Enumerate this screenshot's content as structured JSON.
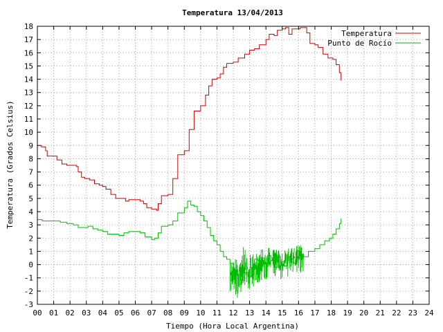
{
  "chart_data": {
    "type": "line",
    "title": "Temperatura 13/04/2013",
    "xlabel": "Tiempo (Hora Local Argentina)",
    "ylabel": "Temperatura (Grados Celsius)",
    "xlim": [
      0,
      24
    ],
    "ylim": [
      -3,
      18
    ],
    "grid": true,
    "legend_position": "top-right",
    "x_ticks": [
      "00",
      "01",
      "02",
      "03",
      "04",
      "05",
      "06",
      "07",
      "08",
      "09",
      "10",
      "11",
      "12",
      "13",
      "14",
      "15",
      "16",
      "17",
      "18",
      "19",
      "20",
      "21",
      "22",
      "23",
      "24"
    ],
    "y_ticks": [
      -3,
      -2,
      -1,
      0,
      1,
      2,
      3,
      4,
      5,
      6,
      7,
      8,
      9,
      10,
      11,
      12,
      13,
      14,
      15,
      16,
      17,
      18
    ],
    "series": [
      {
        "name": "Temperatura",
        "color": "#cc0000",
        "points": [
          [
            0.0,
            9.0
          ],
          [
            0.25,
            8.9
          ],
          [
            0.5,
            8.6
          ],
          [
            0.6,
            8.2
          ],
          [
            1.0,
            8.2
          ],
          [
            1.2,
            7.9
          ],
          [
            1.5,
            7.6
          ],
          [
            1.8,
            7.5
          ],
          [
            2.2,
            7.5
          ],
          [
            2.4,
            7.4
          ],
          [
            2.5,
            7.0
          ],
          [
            2.7,
            6.6
          ],
          [
            2.9,
            6.5
          ],
          [
            3.2,
            6.4
          ],
          [
            3.5,
            6.1
          ],
          [
            3.8,
            6.0
          ],
          [
            4.0,
            5.9
          ],
          [
            4.2,
            5.7
          ],
          [
            4.5,
            5.3
          ],
          [
            4.8,
            5.0
          ],
          [
            5.2,
            5.0
          ],
          [
            5.4,
            4.8
          ],
          [
            5.6,
            4.9
          ],
          [
            6.0,
            4.9
          ],
          [
            6.3,
            4.8
          ],
          [
            6.5,
            4.6
          ],
          [
            6.7,
            4.3
          ],
          [
            7.0,
            4.2
          ],
          [
            7.3,
            4.1
          ],
          [
            7.4,
            4.6
          ],
          [
            7.6,
            5.2
          ],
          [
            8.0,
            5.3
          ],
          [
            8.3,
            6.5
          ],
          [
            8.6,
            8.3
          ],
          [
            9.0,
            8.6
          ],
          [
            9.3,
            10.2
          ],
          [
            9.6,
            11.6
          ],
          [
            10.0,
            12.0
          ],
          [
            10.3,
            12.8
          ],
          [
            10.5,
            13.5
          ],
          [
            10.7,
            14.0
          ],
          [
            11.0,
            14.1
          ],
          [
            11.2,
            14.4
          ],
          [
            11.4,
            14.9
          ],
          [
            11.6,
            15.2
          ],
          [
            12.0,
            15.3
          ],
          [
            12.3,
            15.6
          ],
          [
            12.7,
            15.9
          ],
          [
            13.0,
            16.2
          ],
          [
            13.3,
            16.3
          ],
          [
            13.6,
            16.6
          ],
          [
            14.0,
            17.0
          ],
          [
            14.2,
            17.4
          ],
          [
            14.5,
            17.3
          ],
          [
            14.7,
            17.7
          ],
          [
            15.0,
            17.8
          ],
          [
            15.2,
            17.9
          ],
          [
            15.4,
            17.4
          ],
          [
            15.6,
            17.8
          ],
          [
            15.9,
            17.8
          ],
          [
            16.1,
            17.9
          ],
          [
            16.3,
            17.9
          ],
          [
            16.5,
            17.5
          ],
          [
            16.7,
            16.7
          ],
          [
            17.0,
            16.6
          ],
          [
            17.2,
            16.4
          ],
          [
            17.5,
            15.9
          ],
          [
            17.8,
            15.6
          ],
          [
            18.1,
            15.5
          ],
          [
            18.3,
            15.1
          ],
          [
            18.5,
            14.5
          ],
          [
            18.6,
            13.9
          ]
        ]
      },
      {
        "name": "Punto de Rocío",
        "color": "#00bb00",
        "points": [
          [
            0.0,
            3.4
          ],
          [
            0.3,
            3.3
          ],
          [
            0.6,
            3.3
          ],
          [
            1.0,
            3.3
          ],
          [
            1.4,
            3.2
          ],
          [
            1.8,
            3.1
          ],
          [
            2.2,
            3.0
          ],
          [
            2.5,
            2.8
          ],
          [
            2.8,
            2.8
          ],
          [
            3.1,
            2.9
          ],
          [
            3.4,
            2.7
          ],
          [
            3.7,
            2.6
          ],
          [
            4.0,
            2.5
          ],
          [
            4.3,
            2.3
          ],
          [
            4.6,
            2.3
          ],
          [
            5.0,
            2.2
          ],
          [
            5.3,
            2.4
          ],
          [
            5.6,
            2.5
          ],
          [
            6.0,
            2.5
          ],
          [
            6.3,
            2.4
          ],
          [
            6.6,
            2.1
          ],
          [
            7.0,
            1.9
          ],
          [
            7.2,
            2.0
          ],
          [
            7.4,
            2.4
          ],
          [
            7.6,
            2.9
          ],
          [
            8.0,
            3.0
          ],
          [
            8.3,
            3.3
          ],
          [
            8.6,
            3.9
          ],
          [
            9.0,
            4.3
          ],
          [
            9.2,
            4.8
          ],
          [
            9.4,
            4.5
          ],
          [
            9.6,
            4.4
          ],
          [
            9.8,
            4.0
          ],
          [
            10.0,
            3.7
          ],
          [
            10.2,
            3.3
          ],
          [
            10.4,
            2.8
          ],
          [
            10.6,
            2.2
          ],
          [
            10.8,
            1.8
          ],
          [
            11.0,
            1.5
          ],
          [
            11.2,
            1.0
          ],
          [
            11.4,
            0.6
          ],
          [
            11.6,
            0.4
          ],
          [
            11.8,
            0.1
          ],
          [
            12.0,
            -0.4
          ],
          [
            12.2,
            -0.8
          ],
          [
            12.4,
            -1.5
          ],
          [
            12.5,
            -1.2
          ],
          [
            12.7,
            -0.6
          ],
          [
            12.9,
            -0.9
          ],
          [
            13.1,
            -0.2
          ],
          [
            13.3,
            0.4
          ],
          [
            13.5,
            0.3
          ],
          [
            13.7,
            0.5
          ],
          [
            13.9,
            0.1
          ],
          [
            14.1,
            0.7
          ],
          [
            14.3,
            0.3
          ],
          [
            14.5,
            -0.2
          ],
          [
            14.7,
            0.6
          ],
          [
            14.9,
            0.2
          ],
          [
            15.1,
            -0.1
          ],
          [
            15.3,
            0.6
          ],
          [
            15.5,
            0.2
          ],
          [
            15.7,
            0.1
          ],
          [
            15.9,
            0.5
          ],
          [
            16.1,
            0.8
          ],
          [
            16.3,
            0.6
          ],
          [
            16.6,
            1.0
          ],
          [
            17.0,
            1.2
          ],
          [
            17.3,
            1.5
          ],
          [
            17.6,
            1.8
          ],
          [
            17.9,
            2.0
          ],
          [
            18.1,
            2.3
          ],
          [
            18.3,
            2.7
          ],
          [
            18.5,
            3.1
          ],
          [
            18.6,
            3.5
          ]
        ]
      }
    ],
    "noise_bands": [
      {
        "series": "Punto de Rocío",
        "from": 11.8,
        "to": 16.3,
        "low_at": [
          [
            12.0,
            -2.0
          ],
          [
            12.5,
            -3.0
          ],
          [
            12.8,
            -2.6
          ],
          [
            13.2,
            -1.8
          ],
          [
            13.8,
            -1.3
          ],
          [
            14.4,
            -0.8
          ],
          [
            14.9,
            -1.2
          ],
          [
            15.5,
            -0.9
          ],
          [
            16.0,
            -0.6
          ]
        ],
        "high_at": [
          [
            12.0,
            0.2
          ],
          [
            12.5,
            1.6
          ],
          [
            12.8,
            1.0
          ],
          [
            13.2,
            1.1
          ],
          [
            13.8,
            1.2
          ],
          [
            14.4,
            1.5
          ],
          [
            14.9,
            1.0
          ],
          [
            15.5,
            1.3
          ],
          [
            16.0,
            1.5
          ]
        ]
      }
    ]
  }
}
